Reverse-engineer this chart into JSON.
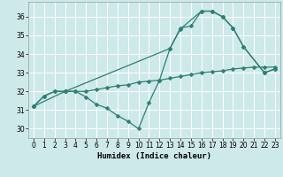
{
  "xlabel": "Humidex (Indice chaleur)",
  "background_color": "#cee9e9",
  "grid_color": "#ffffff",
  "line_color": "#2e7f72",
  "xlim": [
    -0.5,
    23.5
  ],
  "ylim": [
    29.5,
    36.8
  ],
  "yticks": [
    30,
    31,
    32,
    33,
    34,
    35,
    36
  ],
  "xticks": [
    0,
    1,
    2,
    3,
    4,
    5,
    6,
    7,
    8,
    9,
    10,
    11,
    12,
    13,
    14,
    15,
    16,
    17,
    18,
    19,
    20,
    21,
    22,
    23
  ],
  "line1_x": [
    0,
    1,
    2,
    3,
    4,
    5,
    6,
    7,
    8,
    9,
    10,
    11,
    12,
    13,
    14,
    15,
    16,
    17,
    18,
    19,
    20,
    21,
    22,
    23
  ],
  "line1_y": [
    31.2,
    31.75,
    32.0,
    32.0,
    32.0,
    32.0,
    32.1,
    32.2,
    32.3,
    32.35,
    32.5,
    32.55,
    32.6,
    32.7,
    32.8,
    32.9,
    33.0,
    33.05,
    33.1,
    33.2,
    33.25,
    33.3,
    33.3,
    33.3
  ],
  "line2_x": [
    0,
    1,
    2,
    3,
    4,
    5,
    6,
    7,
    8,
    9,
    10,
    11,
    12,
    13,
    14,
    15,
    16,
    17,
    18,
    19,
    20,
    22,
    23
  ],
  "line2_y": [
    31.2,
    31.75,
    32.0,
    32.0,
    32.0,
    31.7,
    31.3,
    31.1,
    30.7,
    30.4,
    30.0,
    31.4,
    32.6,
    34.3,
    35.4,
    35.5,
    36.3,
    36.3,
    36.0,
    35.4,
    34.4,
    33.0,
    33.2
  ],
  "line3_x": [
    0,
    3,
    13,
    14,
    16,
    17,
    18,
    19,
    20,
    22,
    23
  ],
  "line3_y": [
    31.2,
    32.0,
    34.3,
    35.35,
    36.3,
    36.3,
    36.0,
    35.4,
    34.4,
    33.0,
    33.2
  ],
  "markersize": 2.5,
  "linewidth": 0.9
}
